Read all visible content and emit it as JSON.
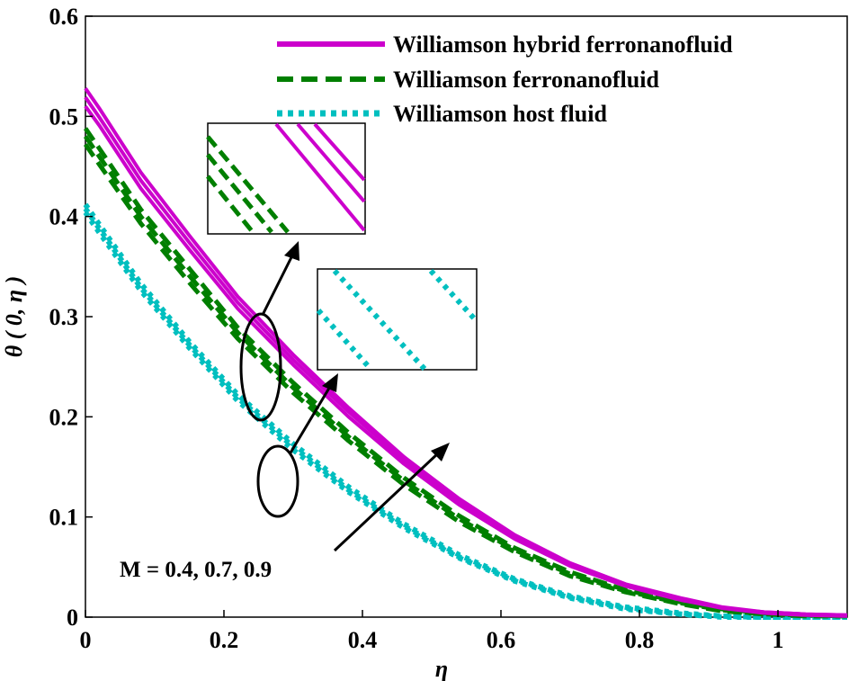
{
  "chart_data": {
    "type": "line",
    "title": "",
    "xlabel": "η",
    "ylabel": "θ ( 0, η )",
    "xlim": [
      0,
      1.1
    ],
    "ylim": [
      0,
      0.6
    ],
    "xticks": [
      0,
      0.2,
      0.4,
      0.6,
      0.8,
      1
    ],
    "xtick_labels": [
      "0",
      "0.2",
      "0.4",
      "0.6",
      "0.8",
      "1"
    ],
    "yticks": [
      0,
      0.1,
      0.2,
      0.3,
      0.4,
      0.5,
      0.6
    ],
    "ytick_labels": [
      "0",
      "0.1",
      "0.2",
      "0.3",
      "0.4",
      "0.5",
      "0.6"
    ],
    "grid": false,
    "legend_position": "top-right",
    "annotation": "M = 0.4, 0.7, 0.9",
    "series": [
      {
        "name": "Williamson hybrid ferronanofluid",
        "group": "hybrid",
        "color": "#cc00cc",
        "dash": "solid",
        "values": [
          0.528,
          0.508,
          0.444,
          0.381,
          0.32,
          0.262,
          0.209,
          0.16,
          0.118,
          0.082,
          0.054,
          0.033,
          0.019,
          0.01,
          0.005,
          0.003,
          0.002
        ]
      },
      {
        "name": "",
        "group": "hybrid",
        "color": "#cc00cc",
        "dash": "solid",
        "values": [
          0.519,
          0.499,
          0.436,
          0.374,
          0.314,
          0.257,
          0.205,
          0.157,
          0.115,
          0.08,
          0.052,
          0.032,
          0.018,
          0.009,
          0.005,
          0.003,
          0.002
        ]
      },
      {
        "name": "",
        "group": "hybrid",
        "color": "#cc00cc",
        "dash": "solid",
        "values": [
          0.51,
          0.491,
          0.428,
          0.367,
          0.308,
          0.252,
          0.2,
          0.153,
          0.112,
          0.078,
          0.051,
          0.031,
          0.017,
          0.009,
          0.004,
          0.002,
          0.001
        ]
      },
      {
        "name": "Williamson ferronanofluid",
        "group": "ferro",
        "color": "#007f00",
        "dash": "dashed",
        "values": [
          0.488,
          0.468,
          0.407,
          0.348,
          0.289,
          0.234,
          0.184,
          0.139,
          0.101,
          0.069,
          0.045,
          0.027,
          0.015,
          0.008,
          0.004,
          0.002,
          0.001
        ]
      },
      {
        "name": "",
        "group": "ferro",
        "color": "#007f00",
        "dash": "dashed",
        "values": [
          0.48,
          0.46,
          0.4,
          0.341,
          0.284,
          0.229,
          0.18,
          0.136,
          0.098,
          0.067,
          0.043,
          0.026,
          0.014,
          0.007,
          0.003,
          0.002,
          0.001
        ]
      },
      {
        "name": "",
        "group": "ferro",
        "color": "#007f00",
        "dash": "dashed",
        "values": [
          0.472,
          0.452,
          0.393,
          0.334,
          0.278,
          0.224,
          0.176,
          0.132,
          0.095,
          0.065,
          0.041,
          0.025,
          0.013,
          0.006,
          0.003,
          0.001,
          0.001
        ]
      },
      {
        "name": "Williamson host fluid",
        "group": "host",
        "color": "#00bfbf",
        "dash": "dotted",
        "values": [
          0.412,
          0.392,
          0.333,
          0.275,
          0.222,
          0.173,
          0.13,
          0.093,
          0.062,
          0.038,
          0.021,
          0.01,
          0.004,
          0.001,
          0.0,
          0.0,
          0.0
        ]
      },
      {
        "name": "",
        "group": "host",
        "color": "#00bfbf",
        "dash": "dotted",
        "values": [
          0.408,
          0.388,
          0.329,
          0.272,
          0.219,
          0.17,
          0.127,
          0.091,
          0.06,
          0.037,
          0.02,
          0.009,
          0.003,
          0.001,
          0.0,
          0.0,
          0.0
        ]
      },
      {
        "name": "",
        "group": "host",
        "color": "#00bfbf",
        "dash": "dotted",
        "values": [
          0.404,
          0.384,
          0.326,
          0.269,
          0.216,
          0.167,
          0.125,
          0.089,
          0.059,
          0.036,
          0.019,
          0.008,
          0.003,
          0.0,
          0.0,
          0.0,
          0.0
        ]
      }
    ],
    "x": [
      0,
      0.02,
      0.08,
      0.15,
      0.22,
      0.3,
      0.38,
      0.46,
      0.54,
      0.62,
      0.7,
      0.78,
      0.86,
      0.92,
      0.98,
      1.04,
      1.1
    ]
  }
}
